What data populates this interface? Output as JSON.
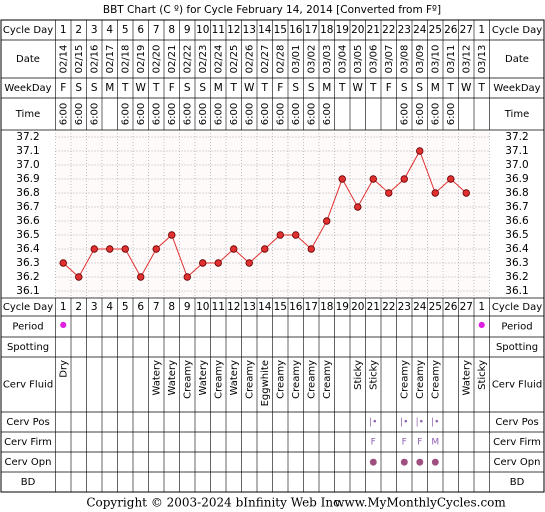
{
  "chart_data": {
    "type": "line",
    "title": "BBT Chart (C º) for Cycle February 14, 2014  [Converted from Fº]",
    "row_labels": {
      "cycle_day": "Cycle Day",
      "date": "Date",
      "weekday": "WeekDay",
      "time": "Time",
      "period": "Period",
      "spotting": "Spotting",
      "cerv_fluid": "Cerv Fluid",
      "cerv_pos": "Cerv Pos",
      "cerv_firm": "Cerv Firm",
      "cerv_opn": "Cerv Opn",
      "bd": "BD"
    },
    "categories": [
      1,
      2,
      3,
      4,
      5,
      6,
      7,
      8,
      9,
      10,
      11,
      12,
      13,
      14,
      15,
      16,
      17,
      18,
      19,
      20,
      21,
      22,
      23,
      24,
      25,
      26,
      27,
      1
    ],
    "dates": [
      "02/14",
      "02/15",
      "02/16",
      "02/17",
      "02/18",
      "02/19",
      "02/20",
      "02/21",
      "02/22",
      "02/23",
      "02/24",
      "02/25",
      "02/26",
      "02/27",
      "02/28",
      "03/01",
      "03/02",
      "03/03",
      "03/04",
      "03/05",
      "03/06",
      "03/07",
      "03/08",
      "03/09",
      "03/10",
      "03/11",
      "03/12",
      "03/13"
    ],
    "weekdays": [
      "F",
      "S",
      "S",
      "M",
      "T",
      "W",
      "T",
      "F",
      "S",
      "S",
      "M",
      "T",
      "W",
      "T",
      "F",
      "S",
      "S",
      "M",
      "T",
      "W",
      "T",
      "F",
      "S",
      "S",
      "M",
      "T",
      "W",
      "T"
    ],
    "times": [
      "6:00",
      "6:00",
      "6:00",
      null,
      "6:00",
      "6:00",
      "6:00",
      "6:00",
      "6:00",
      "6:00",
      "6:00",
      "6:00",
      "6:00",
      "6:00",
      "6:00",
      "6:00",
      "6:00",
      "6:00",
      null,
      null,
      null,
      null,
      "6:00",
      "6:00",
      "6:00",
      "6:00",
      null,
      null
    ],
    "values": [
      36.3,
      36.2,
      36.4,
      36.4,
      36.4,
      36.2,
      36.4,
      36.5,
      36.2,
      36.3,
      36.3,
      36.4,
      36.3,
      36.4,
      36.5,
      36.5,
      36.4,
      36.6,
      36.9,
      36.7,
      36.9,
      36.8,
      36.9,
      37.1,
      36.8,
      36.9,
      36.8,
      null
    ],
    "color": "#e03030",
    "ylim": [
      36.05,
      37.25
    ],
    "yticks": [
      37.2,
      37.1,
      {
        "value": 37,
        "label": "37.0"
      },
      36.9,
      36.8,
      36.7,
      36.6,
      36.5,
      36.4,
      36.3,
      36.2,
      36.1
    ],
    "grid": true,
    "period": [
      "●",
      null,
      null,
      null,
      null,
      null,
      null,
      null,
      null,
      null,
      null,
      null,
      null,
      null,
      null,
      null,
      null,
      null,
      null,
      null,
      null,
      null,
      null,
      null,
      null,
      null,
      null,
      "●"
    ],
    "cervical_fluid": [
      "Dry",
      null,
      null,
      null,
      null,
      null,
      "Watery",
      "Watery",
      "Creamy",
      "Watery",
      "Creamy",
      "Watery",
      "Creamy",
      "Eggwhite",
      "Creamy",
      "Creamy",
      "Creamy",
      "Creamy",
      null,
      "Sticky",
      "Sticky",
      null,
      "Creamy",
      "Creamy",
      "Creamy",
      null,
      "Watery",
      "Sticky"
    ],
    "cervix_position": [
      null,
      null,
      null,
      null,
      null,
      null,
      null,
      null,
      null,
      null,
      null,
      null,
      null,
      null,
      null,
      null,
      null,
      null,
      null,
      null,
      "|•",
      null,
      "|•",
      "|•",
      "|•",
      null,
      null,
      null
    ],
    "cervix_firmness": [
      null,
      null,
      null,
      null,
      null,
      null,
      null,
      null,
      null,
      null,
      null,
      null,
      null,
      null,
      null,
      null,
      null,
      null,
      null,
      null,
      "F",
      null,
      "F",
      "F",
      "M",
      null,
      null,
      null
    ],
    "cervix_opening": [
      null,
      null,
      null,
      null,
      null,
      null,
      null,
      null,
      null,
      null,
      null,
      null,
      null,
      null,
      null,
      null,
      null,
      null,
      null,
      null,
      "●",
      null,
      "●",
      "●",
      "●",
      null,
      null,
      null
    ],
    "copyright": "Copyright © 2003-2024 bInfinity Web Inc.",
    "website": "www.MyMonthlyCycles.com"
  }
}
